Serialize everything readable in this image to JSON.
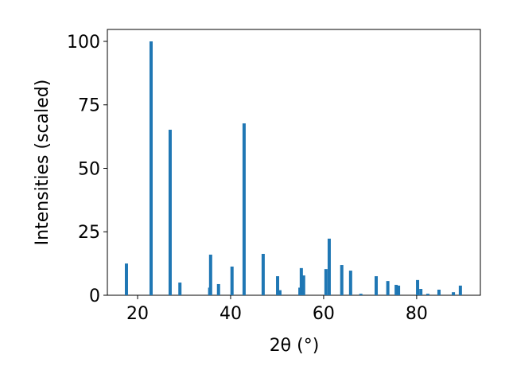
{
  "chart_data": {
    "type": "bar",
    "xlabel": "2θ (°)",
    "ylabel": "Intensities (scaled)",
    "x": [
      17.6,
      22.9,
      27.0,
      29.1,
      35.5,
      35.7,
      37.4,
      40.3,
      42.9,
      47.0,
      50.1,
      50.6,
      54.9,
      55.2,
      55.7,
      60.5,
      61.2,
      63.9,
      65.8,
      68.0,
      71.3,
      73.8,
      75.6,
      76.1,
      80.2,
      80.9,
      82.4,
      84.8,
      87.9,
      89.4
    ],
    "values": [
      12.5,
      100,
      65.2,
      5,
      3,
      16,
      4.4,
      11.3,
      67.7,
      16.3,
      7.5,
      2,
      3,
      10.7,
      7.8,
      10.3,
      22.3,
      11.9,
      9.7,
      0.6,
      7.5,
      5.6,
      4.1,
      3.8,
      6,
      2.5,
      0.6,
      2.2,
      1.2,
      3.8
    ],
    "color": "#1f77b4",
    "xlim": [
      13.5,
      93.7
    ],
    "ylim": [
      0,
      104.7
    ],
    "xticks": [
      20,
      40,
      60,
      80
    ],
    "yticks": [
      0,
      25,
      50,
      75,
      100
    ],
    "grid": false
  }
}
